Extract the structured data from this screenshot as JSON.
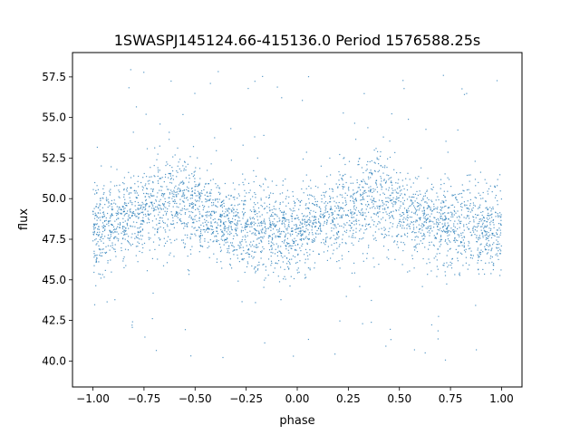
{
  "chart_data": {
    "type": "scatter",
    "title": "1SWASPJ145124.66-415136.0 Period 1576588.25s",
    "xlabel": "phase",
    "ylabel": "flux",
    "xlim": [
      -1.1,
      1.1
    ],
    "ylim": [
      38.4,
      59.0
    ],
    "x_ticks": [
      -1.0,
      -0.75,
      -0.5,
      -0.25,
      0.0,
      0.25,
      0.5,
      0.75,
      1.0
    ],
    "x_tick_labels": [
      "−1.00",
      "−0.75",
      "−0.50",
      "−0.25",
      "0.00",
      "0.25",
      "0.50",
      "0.75",
      "1.00"
    ],
    "y_ticks": [
      40.0,
      42.5,
      45.0,
      47.5,
      50.0,
      52.5,
      55.0,
      57.5
    ],
    "y_tick_labels": [
      "40.0",
      "42.5",
      "45.0",
      "47.5",
      "50.0",
      "52.5",
      "55.0",
      "57.5"
    ],
    "grid": false,
    "series": [
      {
        "color": "#1f77b4",
        "marker": "point",
        "description_of_distribution": "dense phase-folded light curve, phase -1 to 1",
        "envelope": {
          "phase": [
            -1.0,
            -0.9,
            -0.8,
            -0.75,
            -0.7,
            -0.65,
            -0.6,
            -0.55,
            -0.5,
            -0.45,
            -0.4,
            -0.35,
            -0.3,
            -0.25,
            -0.2,
            -0.15,
            -0.1,
            -0.05,
            0.0,
            0.05,
            0.1,
            0.15,
            0.2,
            0.25,
            0.3,
            0.35,
            0.4,
            0.45,
            0.5,
            0.55,
            0.6,
            0.65,
            0.7,
            0.75,
            0.8,
            0.85,
            0.9,
            0.95,
            1.0
          ],
          "center": [
            48.2,
            48.4,
            48.8,
            49.2,
            49.6,
            49.9,
            50.0,
            49.8,
            49.3,
            48.9,
            48.6,
            48.4,
            48.3,
            48.2,
            48.1,
            48.0,
            47.9,
            47.9,
            48.0,
            48.2,
            48.4,
            48.6,
            48.9,
            49.2,
            49.6,
            49.9,
            50.0,
            49.8,
            49.4,
            49.0,
            48.7,
            48.5,
            48.4,
            48.3,
            48.2,
            48.1,
            48.0,
            48.0,
            48.2
          ],
          "spread": [
            2.0,
            1.9,
            1.9,
            2.0,
            2.1,
            2.2,
            2.2,
            2.1,
            2.0,
            1.8,
            1.8,
            1.7,
            1.8,
            1.9,
            1.9,
            1.8,
            1.8,
            1.7,
            1.7,
            1.7,
            1.8,
            1.8,
            1.9,
            2.0,
            2.1,
            2.2,
            2.2,
            2.1,
            2.0,
            1.9,
            1.8,
            1.8,
            1.9,
            2.0,
            2.0,
            1.9,
            1.9,
            1.9,
            2.0
          ]
        }
      }
    ]
  }
}
